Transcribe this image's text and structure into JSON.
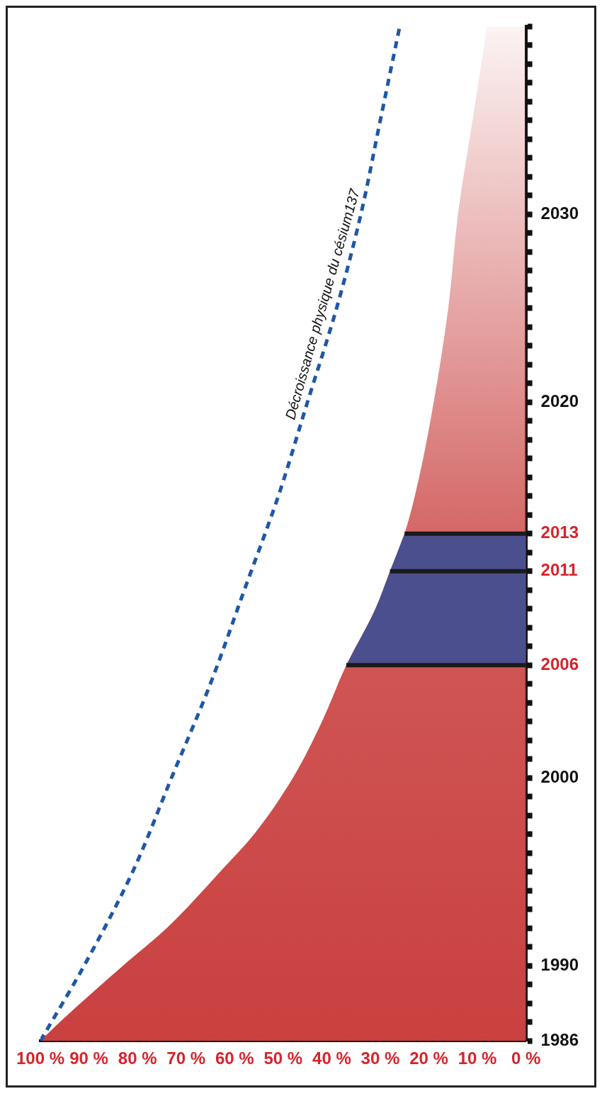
{
  "chart_data": {
    "type": "area",
    "orientation": "horizontal",
    "grid": false,
    "legend": false,
    "xlim": [
      100,
      0
    ],
    "xticks": [
      {
        "value": 100,
        "label": "100 %"
      },
      {
        "value": 90,
        "label": "90 %"
      },
      {
        "value": 80,
        "label": "80 %"
      },
      {
        "value": 70,
        "label": "70 %"
      },
      {
        "value": 60,
        "label": "60 %"
      },
      {
        "value": 50,
        "label": "50 %"
      },
      {
        "value": 40,
        "label": "40 %"
      },
      {
        "value": 30,
        "label": "30 %"
      },
      {
        "value": 20,
        "label": "20 %"
      },
      {
        "value": 10,
        "label": "10 %"
      },
      {
        "value": 0,
        "label": "0 %"
      }
    ],
    "ylim": [
      1986,
      2040
    ],
    "yticks": [
      1986,
      {
        "value": 1987,
        "label": null
      },
      {
        "value": 1988,
        "label": null
      },
      {
        "value": 1989,
        "label": null
      },
      1990,
      {
        "value": 1991,
        "label": null
      },
      {
        "value": 1992,
        "label": null
      },
      {
        "value": 1993,
        "label": null
      },
      {
        "value": 1994,
        "label": null
      },
      {
        "value": 1995,
        "label": null
      },
      {
        "value": 1996,
        "label": null
      },
      {
        "value": 1997,
        "label": null
      },
      {
        "value": 1998,
        "label": null
      },
      {
        "value": 1999,
        "label": null
      },
      2000,
      {
        "value": 2001,
        "label": null
      },
      {
        "value": 2002,
        "label": null
      },
      {
        "value": 2003,
        "label": null
      },
      {
        "value": 2004,
        "label": null
      },
      {
        "value": 2005,
        "label": null
      },
      2006,
      {
        "value": 2007,
        "label": null
      },
      {
        "value": 2008,
        "label": null
      },
      {
        "value": 2009,
        "label": null
      },
      {
        "value": 2010,
        "label": null
      },
      2011,
      {
        "value": 2012,
        "label": null
      },
      2013,
      {
        "value": 2014,
        "label": null
      },
      {
        "value": 2015,
        "label": null
      },
      {
        "value": 2016,
        "label": null
      },
      {
        "value": 2017,
        "label": null
      },
      {
        "value": 2018,
        "label": null
      },
      {
        "value": 2019,
        "label": null
      },
      2020,
      {
        "value": 2021,
        "label": null
      },
      {
        "value": 2022,
        "label": null
      },
      {
        "value": 2023,
        "label": null
      },
      {
        "value": 2024,
        "label": null
      },
      {
        "value": 2025,
        "label": null
      },
      {
        "value": 2026,
        "label": null
      },
      {
        "value": 2027,
        "label": null
      },
      {
        "value": 2028,
        "label": null
      },
      {
        "value": 2029,
        "label": null
      },
      2030,
      {
        "value": 2031,
        "label": null
      },
      {
        "value": 2032,
        "label": null
      },
      {
        "value": 2033,
        "label": null
      },
      {
        "value": 2034,
        "label": null
      },
      {
        "value": 2035,
        "label": null
      },
      {
        "value": 2036,
        "label": null
      },
      {
        "value": 2037,
        "label": null
      },
      {
        "value": 2038,
        "label": null
      },
      {
        "value": 2039,
        "label": null
      },
      {
        "value": 2040,
        "label": null
      }
    ],
    "series": [
      {
        "color": "#c9403f",
        "x": [
          1986,
          1987,
          1990,
          1992,
          1995,
          1997,
          2000,
          2003,
          2006,
          2009,
          2011,
          2013,
          2016,
          2020,
          2025,
          2030,
          2035,
          2040
        ],
        "values": [
          100,
          96,
          83,
          74,
          63,
          56,
          48,
          42,
          37,
          31,
          28,
          25,
          22,
          19,
          16,
          14,
          11,
          8
        ]
      },
      {
        "type": "area",
        "color": "#4b4f8e",
        "x": [
          2006,
          2009,
          2011,
          2013
        ],
        "values": [
          37,
          31,
          28,
          25
        ]
      },
      {
        "type": "line",
        "name": "Décroissance physique du césium137",
        "color": "#1f57a6",
        "line_style": "dashed",
        "x": [
          1986,
          1990,
          1995,
          2000,
          2005,
          2010,
          2015,
          2020,
          2025,
          2030,
          2035,
          2040
        ],
        "values": [
          100,
          91,
          81,
          73,
          65,
          58,
          51,
          45,
          39,
          34,
          30,
          26
        ]
      }
    ],
    "ref_lines": [
      {
        "axis": "y",
        "value": 2006,
        "color": "#1a1a1a"
      },
      {
        "axis": "y",
        "value": 2011,
        "color": "#1a1a1a"
      },
      {
        "axis": "y",
        "value": 2013,
        "color": "#1a1a1a"
      }
    ]
  }
}
